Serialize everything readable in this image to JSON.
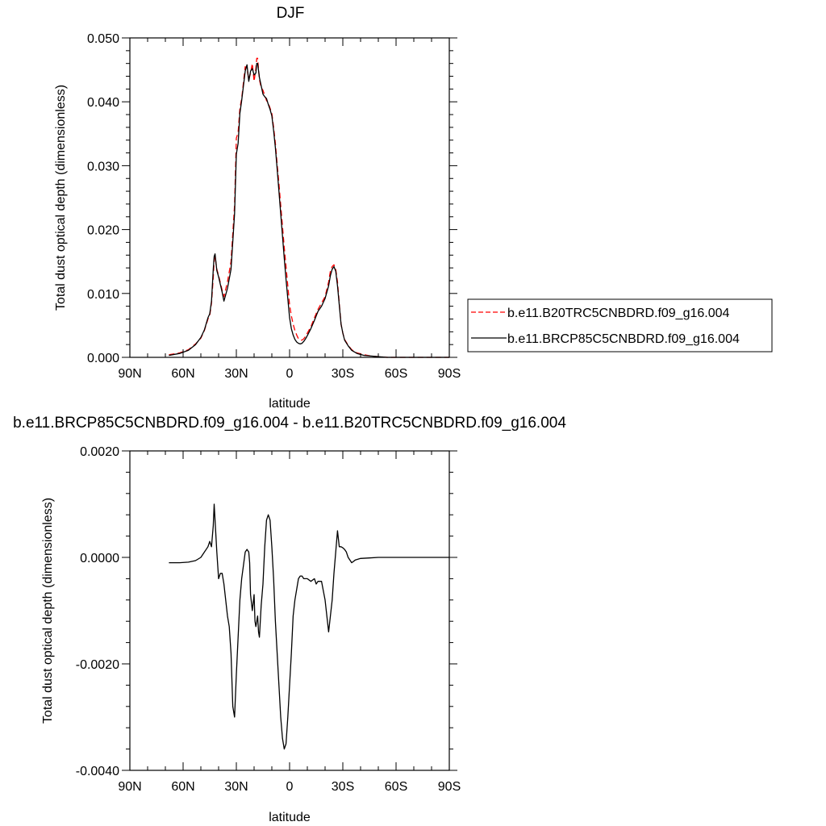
{
  "chart_data": [
    {
      "type": "line",
      "title": "DJF",
      "xlabel": "latitude",
      "ylabel": "Total dust optical depth (dimensionless)",
      "xlim": [
        90,
        -90
      ],
      "ylim": [
        0.0,
        0.05
      ],
      "x_tick_values": [
        90,
        60,
        30,
        0,
        -30,
        -60,
        -90
      ],
      "x_tick_labels": [
        "90N",
        "60N",
        "30N",
        "0",
        "30S",
        "60S",
        "90S"
      ],
      "y_tick_values": [
        0.0,
        0.01,
        0.02,
        0.03,
        0.04,
        0.05
      ],
      "y_tick_labels": [
        "0.000",
        "0.010",
        "0.020",
        "0.030",
        "0.040",
        "0.050"
      ],
      "grid": false,
      "legend_position": "right",
      "series": [
        {
          "name": "b.e11.B20TRC5CNBDRD.f09_g16.004",
          "color": "#ff0000",
          "dash": "dashed",
          "x": [
            68,
            62,
            57,
            53,
            50,
            48,
            46,
            45,
            44,
            43,
            42.5,
            42,
            41,
            40,
            38,
            37,
            35,
            33,
            31,
            30,
            29,
            28,
            27,
            26,
            25,
            24,
            23,
            22,
            21,
            20,
            19,
            18.5,
            18,
            17,
            16,
            15,
            14,
            13,
            12,
            11,
            10,
            9,
            8,
            7,
            6,
            5,
            4,
            3,
            2,
            1,
            0,
            -1,
            -2,
            -3,
            -4,
            -5,
            -6,
            -7,
            -8,
            -9,
            -10,
            -12,
            -14,
            -16,
            -18,
            -20,
            -22,
            -23,
            -24,
            -25,
            -26,
            -27,
            -28,
            -29,
            -30,
            -31,
            -33,
            -35,
            -38,
            -42,
            -46,
            -50,
            -55,
            -60,
            -70,
            -80,
            -90
          ],
          "y": [
            0.0004,
            0.0007,
            0.0012,
            0.0021,
            0.003,
            0.0042,
            0.006,
            0.0065,
            0.0085,
            0.0125,
            0.0152,
            0.0158,
            0.0138,
            0.0128,
            0.0105,
            0.0095,
            0.0118,
            0.015,
            0.0238,
            0.0343,
            0.0352,
            0.039,
            0.0405,
            0.043,
            0.0455,
            0.0452,
            0.0435,
            0.0445,
            0.046,
            0.0432,
            0.0452,
            0.0468,
            0.0468,
            0.0435,
            0.0422,
            0.0418,
            0.041,
            0.0402,
            0.0398,
            0.039,
            0.0382,
            0.036,
            0.0335,
            0.0302,
            0.0272,
            0.0238,
            0.0205,
            0.0172,
            0.0142,
            0.0112,
            0.0082,
            0.0065,
            0.0052,
            0.0042,
            0.0035,
            0.0029,
            0.0027,
            0.0027,
            0.0029,
            0.0033,
            0.0038,
            0.0048,
            0.0062,
            0.0075,
            0.0085,
            0.0095,
            0.0118,
            0.0135,
            0.0142,
            0.0145,
            0.0138,
            0.0118,
            0.0085,
            0.0052,
            0.0038,
            0.0028,
            0.0019,
            0.0012,
            0.0007,
            0.0004,
            0.0002,
            0.0001,
            0.0,
            0.0,
            0.0,
            0.0,
            0.0
          ]
        },
        {
          "name": "b.e11.BRCP85C5CNBDRD.f09_g16.004",
          "color": "#000000",
          "dash": "solid",
          "x": [
            68,
            62,
            57,
            53,
            50,
            48,
            46,
            45,
            44,
            43,
            42.5,
            42,
            41,
            40,
            38,
            37,
            35,
            33,
            31,
            30,
            29,
            28,
            27,
            26,
            25,
            24,
            23,
            22,
            21,
            20,
            19,
            18.5,
            18,
            17,
            16,
            15,
            14,
            13,
            12,
            11,
            10,
            9,
            8,
            7,
            6,
            5,
            4,
            3,
            2,
            1,
            0,
            -1,
            -2,
            -3,
            -4,
            -5,
            -6,
            -7,
            -8,
            -9,
            -10,
            -12,
            -14,
            -16,
            -18,
            -20,
            -22,
            -23,
            -24,
            -25,
            -26,
            -27,
            -28,
            -29,
            -30,
            -31,
            -33,
            -35,
            -38,
            -42,
            -46,
            -50,
            -55,
            -60,
            -70,
            -80,
            -90
          ],
          "y": [
            0.0003,
            0.0006,
            0.0011,
            0.002,
            0.0031,
            0.0043,
            0.0062,
            0.0068,
            0.0088,
            0.0138,
            0.0158,
            0.0162,
            0.0136,
            0.0126,
            0.0102,
            0.0088,
            0.0108,
            0.0138,
            0.0225,
            0.0318,
            0.0335,
            0.0382,
            0.0402,
            0.0425,
            0.0448,
            0.0458,
            0.0432,
            0.0448,
            0.0452,
            0.0442,
            0.0445,
            0.046,
            0.046,
            0.0438,
            0.0425,
            0.0412,
            0.0408,
            0.0405,
            0.0396,
            0.0388,
            0.0378,
            0.0355,
            0.0328,
            0.0295,
            0.026,
            0.0225,
            0.019,
            0.0155,
            0.0122,
            0.0092,
            0.0062,
            0.0045,
            0.0035,
            0.0028,
            0.0024,
            0.0022,
            0.0021,
            0.0022,
            0.0025,
            0.0029,
            0.0034,
            0.0045,
            0.0058,
            0.0072,
            0.008,
            0.0092,
            0.0112,
            0.0128,
            0.0138,
            0.0142,
            0.0135,
            0.0112,
            0.0082,
            0.0052,
            0.0038,
            0.0027,
            0.0018,
            0.0011,
            0.0006,
            0.0003,
            0.0002,
            0.0001,
            0.0,
            0.0,
            0.0,
            0.0,
            0.0
          ]
        }
      ]
    },
    {
      "type": "line",
      "title": "b.e11.BRCP85C5CNBDRD.f09_g16.004 - b.e11.B20TRC5CNBDRD.f09_g16.004",
      "xlabel": "latitude",
      "ylabel": "Total dust optical depth (dimensionless)",
      "xlim": [
        90,
        -90
      ],
      "ylim": [
        -0.004,
        0.002
      ],
      "x_tick_values": [
        90,
        60,
        30,
        0,
        -30,
        -60,
        -90
      ],
      "x_tick_labels": [
        "90N",
        "60N",
        "30N",
        "0",
        "30S",
        "60S",
        "90S"
      ],
      "y_tick_values": [
        -0.004,
        -0.002,
        0.0,
        0.002
      ],
      "y_tick_labels": [
        "-0.0040",
        "-0.0020",
        "0.0000",
        "0.0020"
      ],
      "grid": false,
      "series": [
        {
          "color": "#000000",
          "dash": "solid",
          "x": [
            68,
            62,
            57,
            53,
            50,
            48,
            46,
            45,
            44,
            43,
            42.5,
            42,
            41,
            40,
            39,
            38,
            37,
            36,
            35,
            34,
            33,
            32,
            31,
            30,
            29,
            28,
            27,
            26,
            25,
            24,
            23,
            22.5,
            22,
            21,
            20,
            19.5,
            19,
            18,
            17.5,
            17,
            16,
            15,
            14,
            13,
            12,
            11,
            10,
            9,
            8,
            7,
            6,
            5,
            4,
            3,
            2,
            1,
            0,
            -1,
            -2,
            -3,
            -4,
            -5,
            -6,
            -7,
            -8,
            -10,
            -12,
            -14,
            -15,
            -16,
            -17,
            -18,
            -20,
            -22,
            -24,
            -25,
            -26,
            -27,
            -28,
            -29,
            -30,
            -31,
            -32,
            -33,
            -35,
            -37,
            -40,
            -45,
            -50,
            -60,
            -70,
            -80,
            -90
          ],
          "y": [
            -0.0001,
            -0.0001,
            -9e-05,
            -6e-05,
            0.0,
            0.0001,
            0.0002,
            0.0003,
            0.0002,
            0.0006,
            0.001,
            0.0007,
            0.0001,
            -0.0004,
            -0.0003,
            -0.0003,
            -0.0005,
            -0.0008,
            -0.0011,
            -0.0013,
            -0.0018,
            -0.0028,
            -0.003,
            -0.0022,
            -0.0015,
            -0.0008,
            -0.0004,
            -0.00015,
            0.0001,
            0.00015,
            0.0001,
            -0.0001,
            -0.0007,
            -0.001,
            -0.0007,
            -0.0012,
            -0.0013,
            -0.0011,
            -0.0014,
            -0.0015,
            -0.0009,
            -0.0005,
            0.0002,
            0.0007,
            0.0008,
            0.0007,
            0.0002,
            -0.0004,
            -0.0012,
            -0.0018,
            -0.0024,
            -0.003,
            -0.0034,
            -0.0036,
            -0.0035,
            -0.003,
            -0.0024,
            -0.0018,
            -0.0011,
            -0.0008,
            -0.0006,
            -0.0004,
            -0.00035,
            -0.00035,
            -0.0004,
            -0.0004,
            -0.00045,
            -0.0004,
            -0.0005,
            -0.00045,
            -0.00045,
            -0.00045,
            -0.0008,
            -0.0014,
            -0.0008,
            -0.0003,
            0.0001,
            0.0005,
            0.0002,
            0.0002,
            0.00018,
            0.00015,
            0.0001,
            0.0,
            -0.0001,
            -5e-05,
            -2e-05,
            -1e-05,
            0.0,
            0.0,
            0.0,
            0.0,
            0.0
          ]
        }
      ]
    }
  ]
}
